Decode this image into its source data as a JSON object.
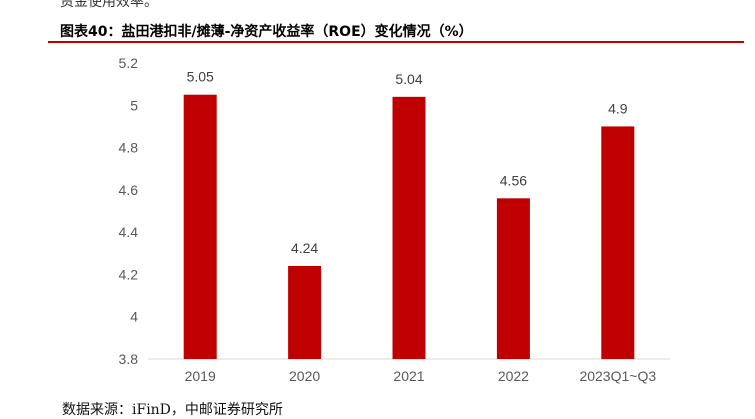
{
  "header": {
    "clipped_text": "资金使用效率。",
    "title": "图表40：盐田港扣非/摊薄-净资产收益率（ROE）变化情况（%）"
  },
  "source": "数据来源：iFinD，中邮证券研究所",
  "colors": {
    "bar": "#c00000",
    "accent": "#c00000",
    "axis": "#d9d9d9"
  },
  "chart_data": {
    "type": "bar",
    "categories": [
      "2019",
      "2020",
      "2021",
      "2022",
      "2023Q1~Q3"
    ],
    "values": [
      5.05,
      4.24,
      5.04,
      4.56,
      4.9
    ],
    "data_labels": [
      "5.05",
      "4.24",
      "5.04",
      "4.56",
      "4.9"
    ],
    "y_ticks": [
      "3.8",
      "4",
      "4.2",
      "4.4",
      "4.6",
      "4.8",
      "5",
      "5.2"
    ],
    "ylim": [
      3.8,
      5.2
    ],
    "grid": false,
    "legend": "none"
  }
}
